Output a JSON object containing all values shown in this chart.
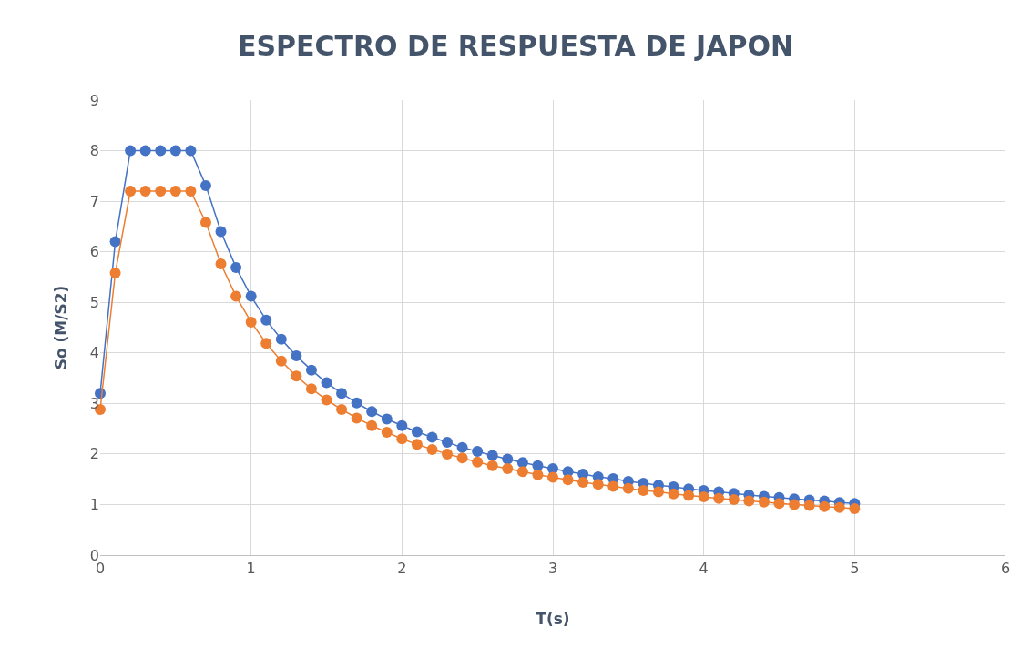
{
  "chart_data": {
    "type": "line",
    "title": "ESPECTRO DE RESPUESTA DE JAPON",
    "xlabel": "T(s)",
    "ylabel": "So (M/S2)",
    "x": [
      0,
      0.1,
      0.2,
      0.3,
      0.4,
      0.5,
      0.6,
      0.7,
      0.8,
      0.9,
      1.0,
      1.1,
      1.2,
      1.3,
      1.4,
      1.5,
      1.6,
      1.7,
      1.8,
      1.9,
      2.0,
      2.1,
      2.2,
      2.3,
      2.4,
      2.5,
      2.6,
      2.7,
      2.8,
      2.9,
      3.0,
      3.1,
      3.2,
      3.3,
      3.4,
      3.5,
      3.6,
      3.7,
      3.8,
      3.9,
      4.0,
      4.1,
      4.2,
      4.3,
      4.4,
      4.5,
      4.6,
      4.7,
      4.8,
      4.9,
      5.0
    ],
    "series": [
      {
        "color": "#4472c4",
        "values": [
          3.2,
          6.2,
          8,
          8,
          8,
          8,
          8,
          7.31,
          6.4,
          5.69,
          5.12,
          4.65,
          4.27,
          3.94,
          3.66,
          3.41,
          3.2,
          3.01,
          2.84,
          2.69,
          2.56,
          2.44,
          2.33,
          2.23,
          2.13,
          2.05,
          1.97,
          1.9,
          1.83,
          1.77,
          1.71,
          1.65,
          1.6,
          1.55,
          1.51,
          1.46,
          1.42,
          1.38,
          1.35,
          1.31,
          1.28,
          1.25,
          1.22,
          1.19,
          1.16,
          1.14,
          1.11,
          1.09,
          1.07,
          1.04,
          1.02
        ]
      },
      {
        "color": "#ed7d31",
        "values": [
          2.88,
          5.58,
          7.2,
          7.2,
          7.2,
          7.2,
          7.2,
          6.58,
          5.76,
          5.12,
          4.61,
          4.19,
          3.84,
          3.54,
          3.29,
          3.07,
          2.88,
          2.71,
          2.56,
          2.43,
          2.3,
          2.19,
          2.09,
          2.0,
          1.92,
          1.84,
          1.77,
          1.71,
          1.65,
          1.59,
          1.54,
          1.49,
          1.44,
          1.4,
          1.36,
          1.32,
          1.28,
          1.25,
          1.21,
          1.18,
          1.15,
          1.12,
          1.1,
          1.07,
          1.05,
          1.02,
          1.0,
          0.98,
          0.96,
          0.94,
          0.92
        ]
      }
    ],
    "xlim": [
      0,
      6
    ],
    "xticks": [
      0,
      1,
      2,
      3,
      4,
      5,
      6
    ],
    "ylim": [
      0,
      9
    ],
    "yticks": [
      0,
      1,
      2,
      3,
      4,
      5,
      6,
      7,
      8,
      9
    ],
    "grid": true,
    "marker": "circle",
    "line_style": "solid"
  }
}
